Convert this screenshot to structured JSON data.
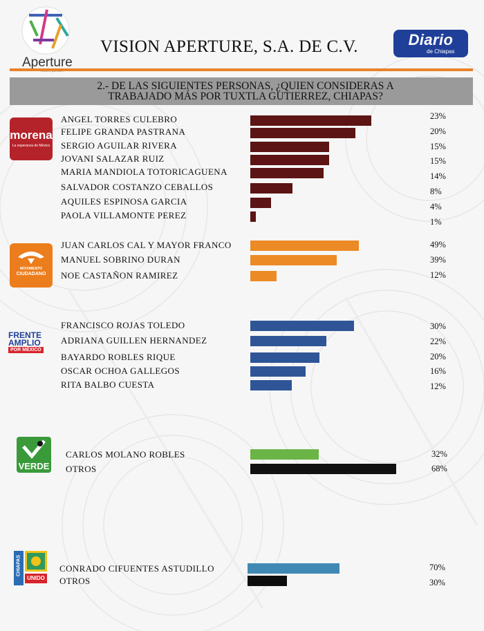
{
  "header": {
    "brand": "Aperture",
    "brand_sub": "Vision Aperture",
    "company": "VISION APERTURE, S.A. DE C.V.",
    "newspaper": "Diario",
    "newspaper_sub": "de Chiapas"
  },
  "question": {
    "line1": "2.- DE LAS SIGUIENTES PERSONAS, ¿QUIEN CONSIDERAS A",
    "line2": "TRABAJADO MÁS POR TUXTLA GUTIERREZ, CHIAPAS?"
  },
  "logos": {
    "morena": {
      "text": "morena",
      "sub": "La esperanza de México",
      "color": "#b5232a"
    },
    "mc": {
      "line1": "MOVIMIENTO",
      "line2": "CIUDADANO",
      "color": "#ec7d1c"
    },
    "frente": {
      "line1": "FRENTE",
      "line2": "AMPLIO",
      "line3": "POR MÉXICO"
    },
    "verde": {
      "text": "VERDE",
      "color": "#3a9a3a"
    },
    "chiapas": {
      "line1": "CHIAPAS",
      "line2": "UNIDO"
    }
  },
  "chart_data": {
    "type": "bar",
    "orientation": "horizontal",
    "groups": [
      {
        "party": "morena",
        "color": "#5c1414",
        "categories": [
          "ANGEL TORRES CULEBRO",
          "FELIPE GRANDA PASTRANA",
          "SERGIO AGUILAR RIVERA",
          "JOVANI SALAZAR RUIZ",
          "MARIA MANDIOLA TOTORICAGUENA",
          "SALVADOR COSTANZO CEBALLOS",
          "AQUILES ESPINOSA GARCIA",
          "PAOLA VILLAMONTE PEREZ"
        ],
        "values": [
          23,
          20,
          15,
          15,
          14,
          8,
          4,
          1
        ],
        "labels": [
          "23%",
          "20%",
          "15%",
          "15%",
          "14%",
          "8%",
          "4%",
          "1%"
        ]
      },
      {
        "party": "movimiento ciudadano",
        "color": "#ec8a25",
        "categories": [
          "JUAN CARLOS CAL Y MAYOR FRANCO",
          "MANUEL SOBRINO DURAN",
          "NOE CASTAÑON RAMIREZ"
        ],
        "values": [
          49,
          39,
          12
        ],
        "labels": [
          "49%",
          "39%",
          "12%"
        ]
      },
      {
        "party": "frente amplio por mexico",
        "color": "#2f5597",
        "categories": [
          "FRANCISCO ROJAS TOLEDO",
          "ADRIANA GUILLEN HERNANDEZ",
          "BAYARDO ROBLES RIQUE",
          "OSCAR OCHOA GALLEGOS",
          "RITA BALBO CUESTA"
        ],
        "values": [
          30,
          22,
          20,
          16,
          12
        ],
        "labels": [
          "30%",
          "22%",
          "20%",
          "16%",
          "12%"
        ]
      },
      {
        "party": "verde",
        "colors": [
          "#6ab546",
          "#111111"
        ],
        "categories": [
          "CARLOS MOLANO ROBLES",
          "OTROS"
        ],
        "values": [
          32,
          68
        ],
        "labels": [
          "32%",
          "68%"
        ]
      },
      {
        "party": "chiapas unido",
        "colors": [
          "#4189b5",
          "#0d0d0d"
        ],
        "categories": [
          "CONRADO CIFUENTES ASTUDILLO",
          "OTROS"
        ],
        "values": [
          70,
          30
        ],
        "labels": [
          "70%",
          "30%"
        ]
      }
    ]
  }
}
